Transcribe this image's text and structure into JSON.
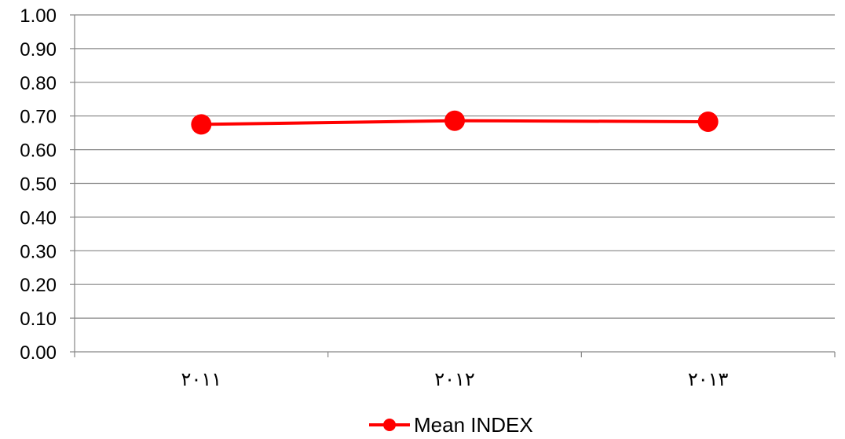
{
  "chart_data": {
    "type": "line",
    "categories": [
      "٢٠١١",
      "٢٠١٢",
      "٢٠١٣"
    ],
    "series": [
      {
        "name": "Mean INDEX",
        "values": [
          0.675,
          0.686,
          0.683
        ],
        "color": "#ff0000"
      }
    ],
    "ylim": [
      0,
      1
    ],
    "yticks": [
      "0.00",
      "0.10",
      "0.20",
      "0.30",
      "0.40",
      "0.50",
      "0.60",
      "0.70",
      "0.80",
      "0.90",
      "1.00"
    ],
    "grid": true,
    "gridline_color": "#868686",
    "legend_position": "bottom"
  }
}
